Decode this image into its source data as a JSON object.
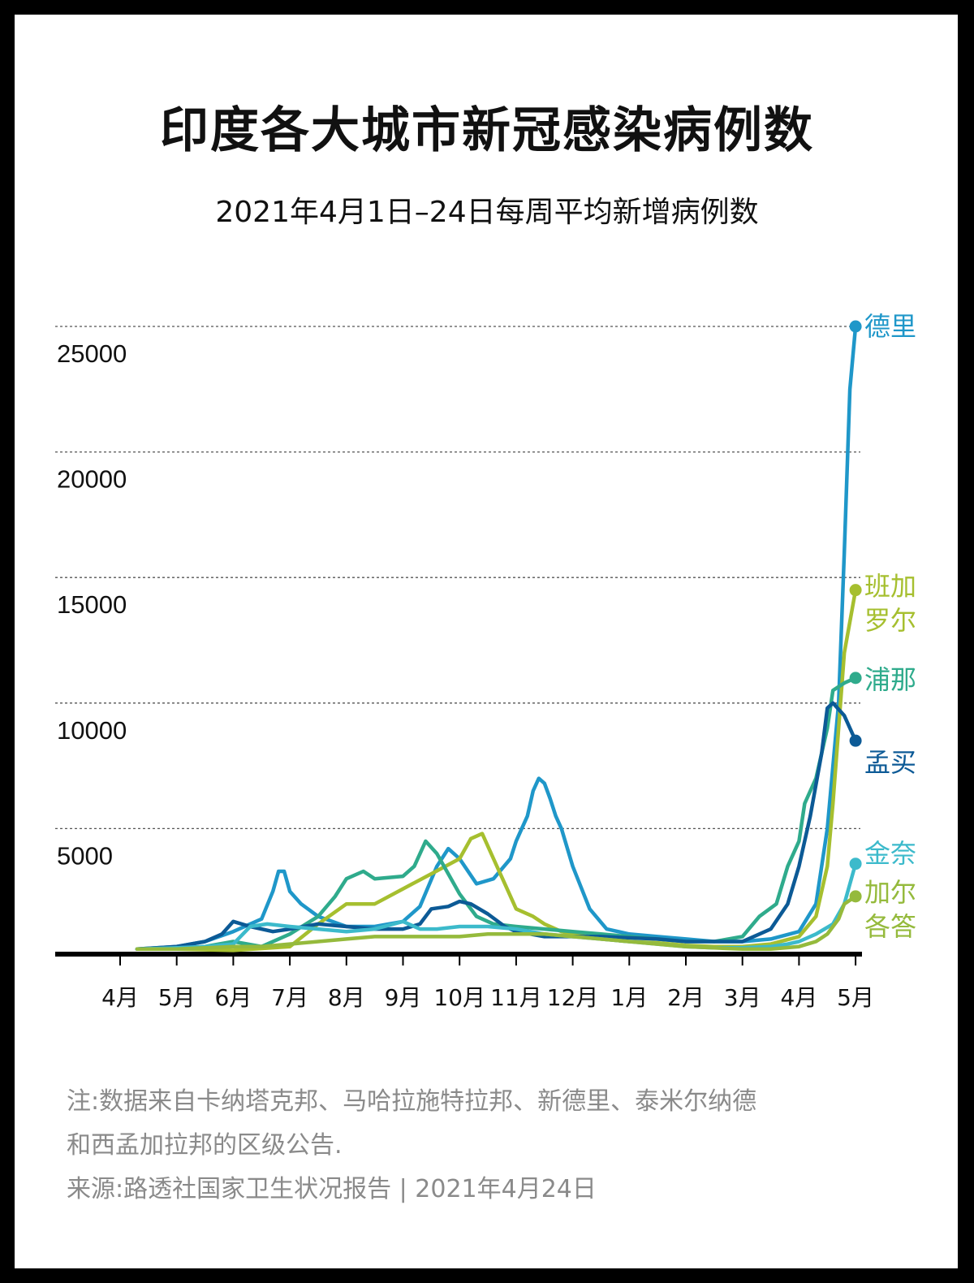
{
  "title": "印度各大城市新冠感染病例数",
  "subtitle": "2021年4月1日–24日每周平均新增病例数",
  "notes": {
    "line1": "注:数据来自卡纳塔克邦、马哈拉施特拉邦、新德里、泰米尔纳德",
    "line2": "和西孟加拉邦的区级公告.",
    "source": "来源:路透社国家卫生状况报告 | 2021年4月24日"
  },
  "chart_data": {
    "type": "line",
    "title": "印度各大城市新冠感染病例数",
    "subtitle": "2021年4月1日–24日每周平均新增病例数",
    "xlabel": "",
    "ylabel": "",
    "xlim": [
      0,
      13.3
    ],
    "ylim": [
      0,
      25000
    ],
    "yticks": [
      5000,
      10000,
      15000,
      20000,
      25000
    ],
    "x_ticks": [
      {
        "x": 0,
        "label": "4月"
      },
      {
        "x": 1,
        "label": "5月"
      },
      {
        "x": 2,
        "label": "6月"
      },
      {
        "x": 3,
        "label": "7月"
      },
      {
        "x": 4,
        "label": "8月"
      },
      {
        "x": 5,
        "label": "9月"
      },
      {
        "x": 6,
        "label": "10月"
      },
      {
        "x": 7,
        "label": "11月"
      },
      {
        "x": 8,
        "label": "12月"
      },
      {
        "x": 9,
        "label": "1月"
      },
      {
        "x": 10,
        "label": "2月"
      },
      {
        "x": 11,
        "label": "3月"
      },
      {
        "x": 12,
        "label": "4月"
      },
      {
        "x": 13,
        "label": "5月"
      }
    ],
    "grid": "dashed horizontal",
    "series": [
      {
        "name": "德里",
        "color": "#1f97c9",
        "label_lines": [
          "德里"
        ],
        "x": [
          0.3,
          1,
          1.5,
          2,
          2.5,
          2.7,
          2.8,
          2.9,
          3,
          3.2,
          3.5,
          4,
          4.5,
          5,
          5.3,
          5.6,
          5.8,
          6,
          6.3,
          6.6,
          6.9,
          7,
          7.2,
          7.3,
          7.4,
          7.5,
          7.6,
          7.7,
          7.8,
          8,
          8.3,
          8.6,
          9,
          9.5,
          10,
          10.5,
          11,
          11.5,
          12,
          12.3,
          12.5,
          12.7,
          12.8,
          12.9,
          13
        ],
        "y": [
          200,
          300,
          500,
          900,
          1400,
          2500,
          3300,
          3300,
          2500,
          2000,
          1500,
          1100,
          1100,
          1300,
          1900,
          3500,
          4200,
          3800,
          2800,
          3000,
          3800,
          4500,
          5500,
          6500,
          7000,
          6800,
          6200,
          5500,
          5000,
          3500,
          1800,
          1000,
          800,
          700,
          600,
          500,
          500,
          600,
          900,
          2000,
          5000,
          10000,
          16000,
          22500,
          25000
        ]
      },
      {
        "name": "班加罗尔",
        "color": "#a6bf2f",
        "label_lines": [
          "班加",
          "罗尔"
        ],
        "x": [
          0.3,
          1,
          2,
          3,
          3.5,
          4,
          4.5,
          5,
          5.5,
          6,
          6.2,
          6.4,
          6.6,
          6.8,
          7,
          7.3,
          7.5,
          7.8,
          8,
          8.5,
          9,
          9.5,
          10,
          10.5,
          11,
          11.5,
          12,
          12.3,
          12.5,
          12.6,
          12.7,
          12.8,
          13
        ],
        "y": [
          200,
          200,
          150,
          300,
          1200,
          2000,
          2000,
          2600,
          3200,
          3800,
          4600,
          4800,
          3800,
          2800,
          1800,
          1500,
          1200,
          900,
          800,
          600,
          500,
          450,
          350,
          300,
          300,
          400,
          700,
          1500,
          3500,
          6000,
          9000,
          12000,
          14500
        ]
      },
      {
        "name": "浦那",
        "color": "#2fab8c",
        "label_lines": [
          "浦那"
        ],
        "x": [
          0.3,
          1,
          1.5,
          2,
          2.5,
          3,
          3.5,
          3.8,
          4,
          4.3,
          4.5,
          5,
          5.2,
          5.4,
          5.6,
          5.8,
          6,
          6.3,
          6.6,
          7,
          7.5,
          8,
          8.5,
          9,
          9.5,
          10,
          10.5,
          11,
          11.3,
          11.6,
          11.8,
          12,
          12.1,
          12.3,
          12.5,
          12.6,
          12.8,
          13
        ],
        "y": [
          200,
          200,
          300,
          500,
          300,
          800,
          1500,
          2300,
          3000,
          3300,
          3000,
          3100,
          3500,
          4500,
          4000,
          3200,
          2400,
          1500,
          1200,
          1100,
          1000,
          900,
          800,
          700,
          600,
          500,
          500,
          700,
          1500,
          2000,
          3500,
          4500,
          6000,
          7000,
          9000,
          10500,
          10800,
          11000
        ]
      },
      {
        "name": "孟买",
        "color": "#0c5a96",
        "label_lines": [
          "孟买"
        ],
        "x": [
          0.3,
          1,
          1.5,
          1.8,
          2,
          2.3,
          2.7,
          3,
          3.5,
          4,
          4.5,
          5,
          5.3,
          5.5,
          5.8,
          6,
          6.2,
          6.5,
          6.8,
          7,
          7.5,
          8,
          8.5,
          9,
          9.5,
          10,
          10.5,
          11,
          11.3,
          11.5,
          11.8,
          12,
          12.2,
          12.4,
          12.5,
          12.6,
          12.8,
          13
        ],
        "y": [
          200,
          300,
          500,
          800,
          1300,
          1100,
          900,
          1000,
          1200,
          1100,
          1000,
          1000,
          1200,
          1800,
          1900,
          2100,
          2000,
          1600,
          1100,
          900,
          700,
          700,
          700,
          650,
          600,
          500,
          500,
          500,
          800,
          1000,
          2000,
          3500,
          5500,
          8000,
          9800,
          10000,
          9500,
          8500
        ]
      },
      {
        "name": "金奈",
        "color": "#3cbacb",
        "label_lines": [
          "金奈"
        ],
        "x": [
          0.3,
          1,
          1.5,
          2,
          2.3,
          2.6,
          3,
          3.5,
          4,
          4.5,
          5,
          5.3,
          5.6,
          6,
          6.5,
          7,
          7.5,
          8,
          8.5,
          9,
          9.5,
          10,
          10.5,
          11,
          11.5,
          11.8,
          12,
          12.3,
          12.6,
          12.8,
          13
        ],
        "y": [
          200,
          250,
          300,
          400,
          1100,
          1200,
          1100,
          1000,
          900,
          1000,
          1300,
          1000,
          1000,
          1100,
          1100,
          1000,
          800,
          700,
          600,
          500,
          400,
          300,
          250,
          250,
          300,
          400,
          500,
          800,
          1200,
          2000,
          3600
        ]
      },
      {
        "name": "加尔各答",
        "color": "#95ba3c",
        "label_lines": [
          "加尔",
          "各答"
        ],
        "x": [
          0.3,
          1,
          1.5,
          2,
          2.5,
          3,
          3.5,
          4,
          4.5,
          5,
          5.5,
          6,
          6.5,
          7,
          7.5,
          8,
          8.5,
          9,
          9.5,
          10,
          10.5,
          11,
          11.5,
          12,
          12.3,
          12.5,
          12.7,
          12.8,
          13
        ],
        "y": [
          200,
          200,
          250,
          300,
          300,
          400,
          500,
          600,
          700,
          700,
          700,
          700,
          800,
          800,
          800,
          700,
          600,
          500,
          400,
          300,
          250,
          200,
          200,
          300,
          500,
          800,
          1400,
          2000,
          2300
        ]
      }
    ]
  }
}
